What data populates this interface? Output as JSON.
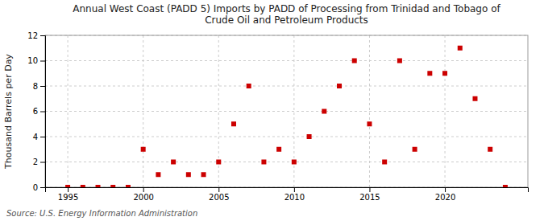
{
  "chart_data": {
    "type": "scatter",
    "title": "Annual West Coast (PADD 5) Imports by PADD of Processing from Trinidad and Tobago of\nCrude Oil and Petroleum Products",
    "ylabel": "Thousand Barrels per Day",
    "source": "Source: U.S. Energy Information Administration",
    "x": [
      1995,
      1996,
      1997,
      1998,
      1999,
      2000,
      2001,
      2002,
      2003,
      2004,
      2005,
      2006,
      2007,
      2008,
      2009,
      2010,
      2011,
      2012,
      2013,
      2014,
      2015,
      2016,
      2017,
      2018,
      2019,
      2020,
      2021,
      2022,
      2023,
      2024
    ],
    "values": [
      0,
      0,
      0,
      0,
      0,
      3,
      1,
      2,
      1,
      1,
      2,
      5,
      8,
      2,
      3,
      2,
      4,
      6,
      8,
      10,
      5,
      2,
      10,
      3,
      9,
      9,
      11,
      7,
      3,
      0
    ],
    "color": "#cc0000",
    "marker": "square",
    "xlim": [
      1993.5,
      2025.5
    ],
    "ylim": [
      0,
      12
    ],
    "xticks": [
      1995,
      2000,
      2005,
      2010,
      2015,
      2020
    ],
    "yticks": [
      0,
      2,
      4,
      6,
      8,
      10,
      12
    ],
    "grid": true
  }
}
